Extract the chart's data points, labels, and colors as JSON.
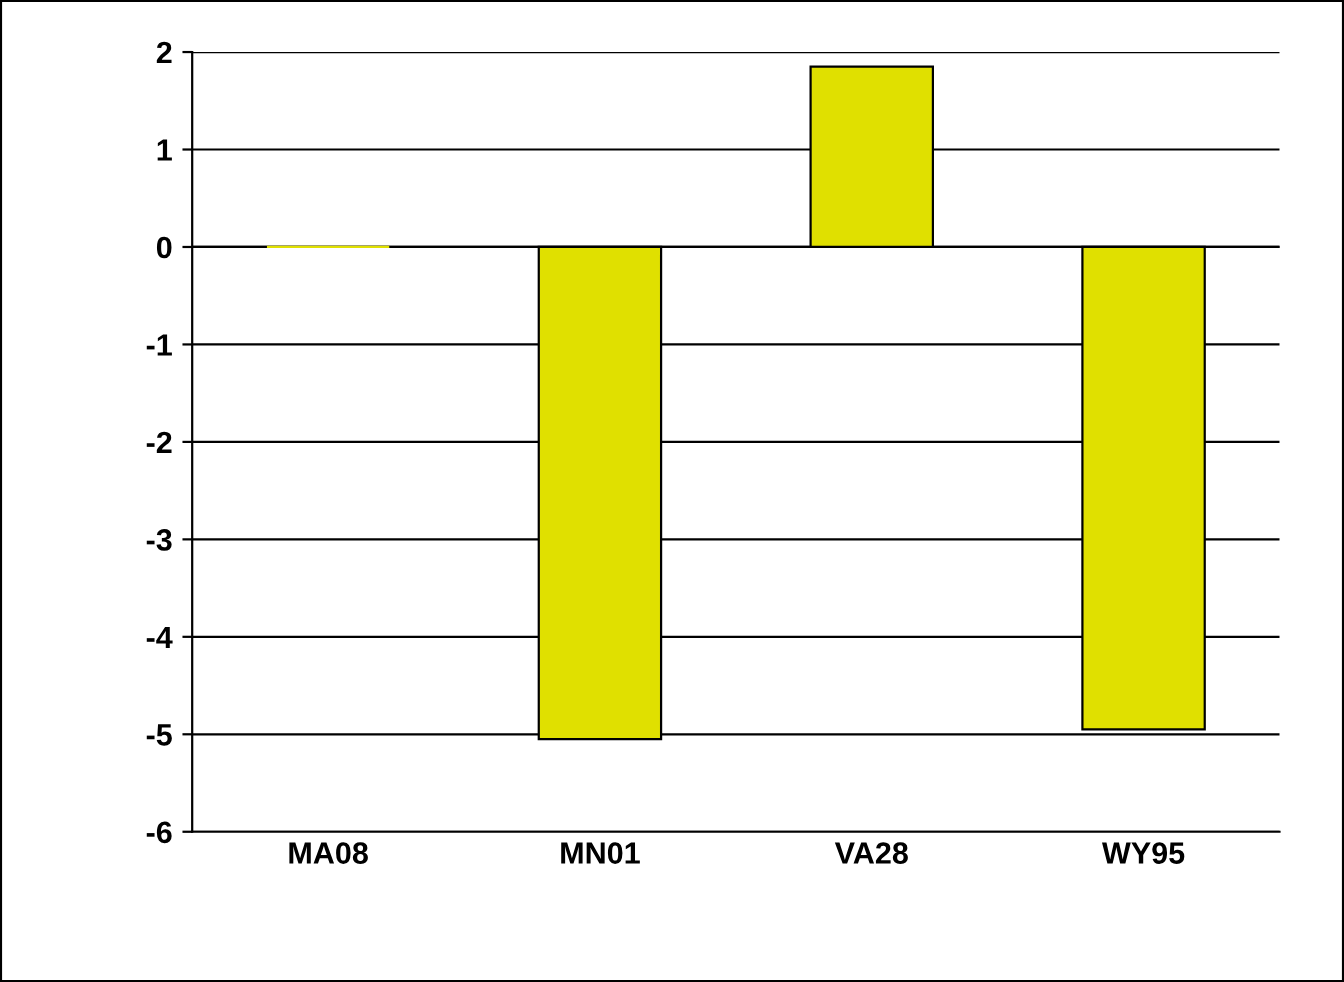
{
  "chart_data": {
    "type": "bar",
    "categories": [
      "MA08",
      "MN01",
      "VA28",
      "WY95"
    ],
    "values": [
      0,
      -5.05,
      1.85,
      -4.95
    ],
    "color": "#e0e000",
    "ylim": [
      -6,
      2
    ],
    "yticks": [
      -6,
      -5,
      -4,
      -3,
      -2,
      -1,
      0,
      1,
      2
    ],
    "grid": "y",
    "legend": false
  }
}
